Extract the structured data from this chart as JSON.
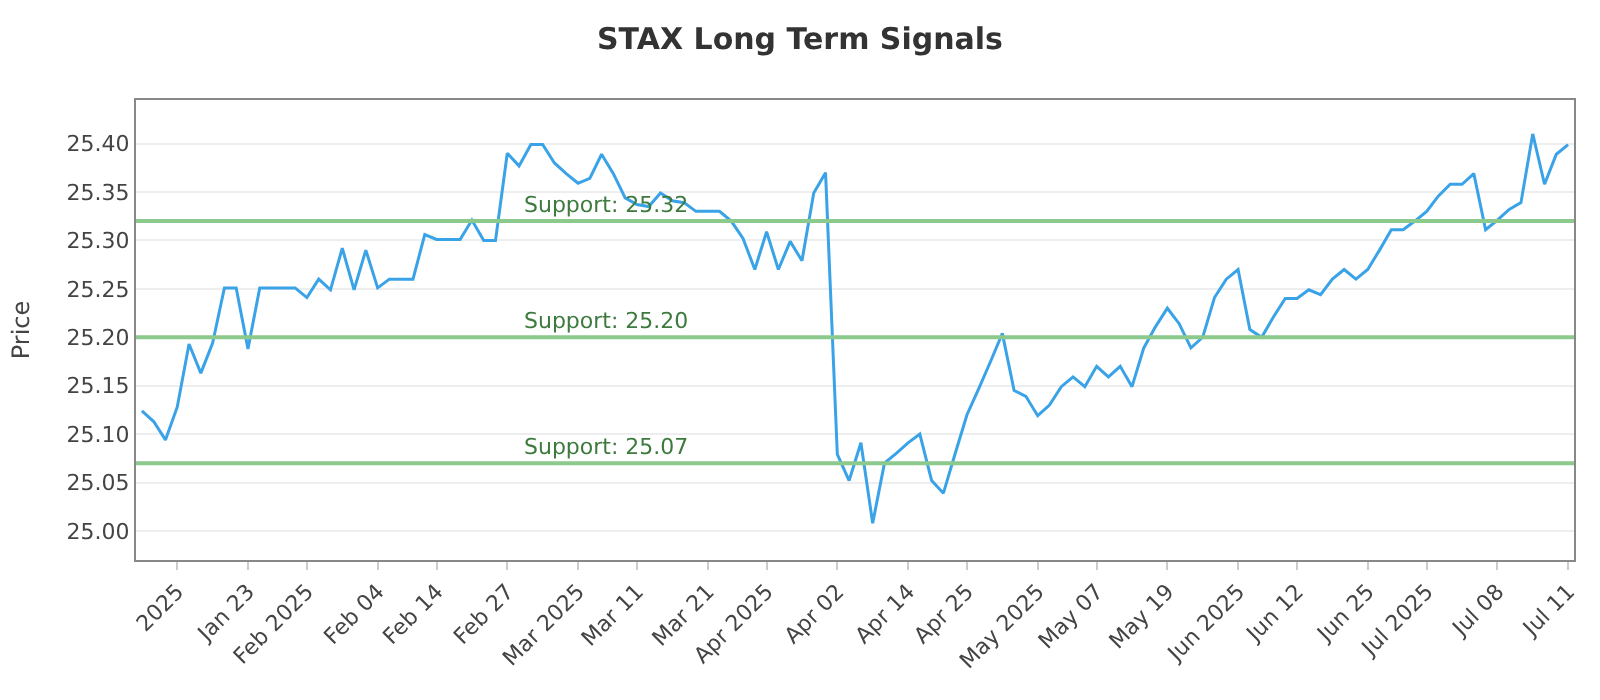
{
  "chart_data": {
    "type": "line",
    "title": "STAX Long Term Signals",
    "ylabel": "Price",
    "categories": [
      null,
      null,
      null,
      "2025",
      null,
      null,
      null,
      null,
      null,
      "Jan 23",
      null,
      null,
      null,
      null,
      "Feb 2025",
      null,
      null,
      null,
      null,
      null,
      "Feb 04",
      null,
      null,
      null,
      null,
      "Feb 14",
      null,
      null,
      null,
      null,
      null,
      "Feb 27",
      null,
      null,
      null,
      null,
      null,
      "Mar 2025",
      null,
      null,
      null,
      null,
      "Mar 11",
      null,
      null,
      null,
      null,
      null,
      "Mar 21",
      null,
      null,
      null,
      null,
      "Apr 2025",
      null,
      null,
      null,
      null,
      null,
      "Apr 02",
      null,
      null,
      null,
      null,
      null,
      "Apr 14",
      null,
      null,
      null,
      null,
      "Apr 25",
      null,
      null,
      null,
      null,
      null,
      "May 2025",
      null,
      null,
      null,
      null,
      "May 07",
      null,
      null,
      null,
      null,
      null,
      "May 19",
      null,
      null,
      null,
      null,
      null,
      "Jun 2025",
      null,
      null,
      null,
      null,
      "Jun 12",
      null,
      null,
      null,
      null,
      null,
      "Jun 25",
      null,
      null,
      null,
      null,
      "Jul 2025",
      null,
      null,
      null,
      null,
      null,
      "Jul 08",
      null,
      null,
      null,
      null,
      null,
      "Jul 11"
    ],
    "series": [
      {
        "color": "#3aa3e8",
        "values": [
          25.124,
          25.113,
          25.094,
          25.128,
          25.193,
          25.163,
          25.194,
          25.251,
          25.251,
          25.188,
          25.251,
          25.251,
          25.251,
          25.251,
          25.241,
          25.26,
          25.249,
          25.292,
          25.249,
          25.29,
          25.251,
          25.26,
          25.26,
          25.26,
          25.306,
          25.301,
          25.301,
          25.301,
          25.321,
          25.3,
          25.3,
          25.39,
          25.377,
          25.399,
          25.399,
          25.38,
          25.369,
          25.359,
          25.364,
          25.389,
          25.369,
          25.344,
          25.337,
          25.335,
          25.349,
          25.341,
          25.339,
          25.33,
          25.33,
          25.33,
          25.32,
          25.302,
          25.27,
          25.309,
          25.27,
          25.299,
          25.279,
          25.349,
          25.37,
          25.079,
          25.052,
          25.091,
          25.008,
          25.07,
          25.08,
          25.091,
          25.1,
          25.052,
          25.039,
          25.08,
          25.12,
          25.147,
          25.175,
          25.204,
          25.145,
          25.139,
          25.119,
          25.13,
          25.149,
          25.159,
          25.149,
          25.17,
          25.159,
          25.17,
          25.149,
          25.189,
          25.211,
          25.23,
          25.214,
          25.189,
          25.2,
          25.241,
          25.26,
          25.27,
          25.208,
          25.2,
          25.221,
          25.24,
          25.24,
          25.249,
          25.244,
          25.26,
          25.27,
          25.26,
          25.27,
          25.29,
          25.311,
          25.311,
          25.32,
          25.33,
          25.346,
          25.358,
          25.358,
          25.369,
          25.311,
          25.321,
          25.332,
          25.339,
          25.41,
          25.358,
          25.389,
          25.399
        ]
      }
    ],
    "ylim": [
      24.97,
      25.445
    ],
    "yticks": [
      {
        "value": 25.0,
        "label": "25.00"
      },
      {
        "value": 25.05,
        "label": "25.05"
      },
      {
        "value": 25.1,
        "label": "25.10"
      },
      {
        "value": 25.15,
        "label": "25.15"
      },
      {
        "value": 25.2,
        "label": "25.20"
      },
      {
        "value": 25.25,
        "label": "25.25"
      },
      {
        "value": 25.3,
        "label": "25.30"
      },
      {
        "value": 25.35,
        "label": "25.35"
      },
      {
        "value": 25.4,
        "label": "25.40"
      }
    ],
    "grid": "y",
    "marker": "none",
    "line_style": "solid",
    "ref_lines": [
      {
        "axis": "y",
        "value": 25.32,
        "label": "Support: 25.32",
        "color": "#8cc98c"
      },
      {
        "axis": "y",
        "value": 25.2,
        "label": "Support: 25.20",
        "color": "#8cc98c"
      },
      {
        "axis": "y",
        "value": 25.07,
        "label": "Support: 25.07",
        "color": "#8cc98c"
      }
    ]
  }
}
